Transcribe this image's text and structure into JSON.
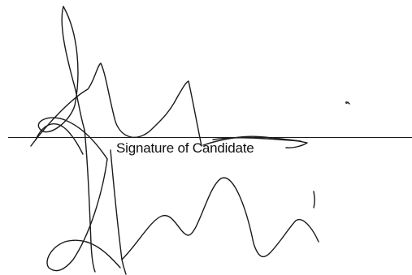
{
  "form": {
    "signature_caption": "Signature of Candidate"
  },
  "colors": {
    "ink": "#1a1a1a",
    "paper": "#ffffff"
  }
}
